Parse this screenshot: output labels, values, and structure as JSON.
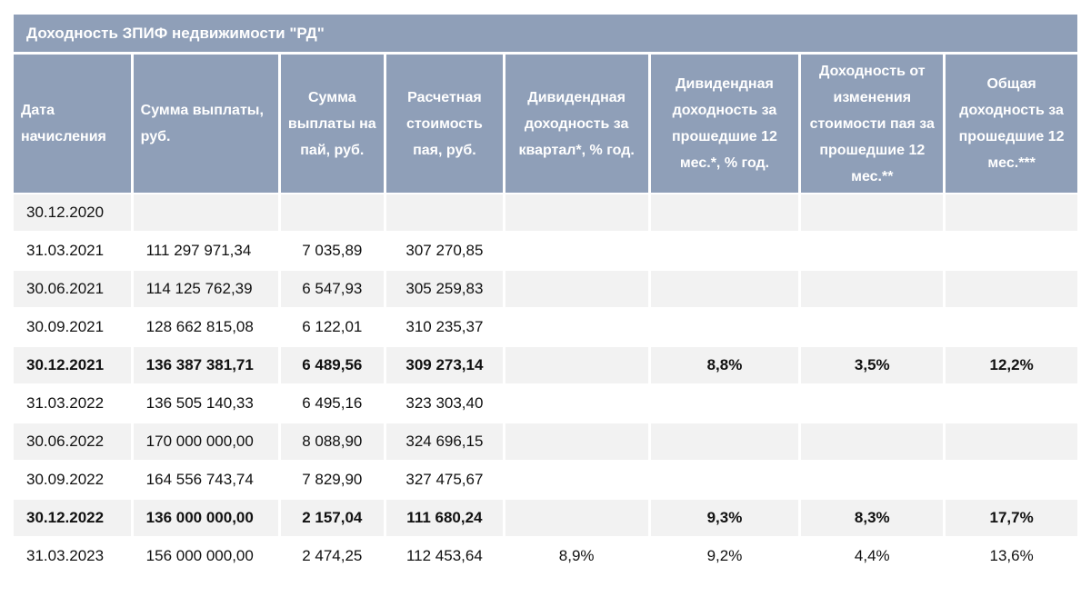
{
  "title": "Доходность ЗПИФ недвижимости \"РД\"",
  "headers": [
    "Дата начисления",
    "Сумма выплаты, руб.",
    "Сумма выплаты на пай, руб.",
    "Расчетная стоимость пая, руб.",
    "Дивидендная доходность за квартал*, % год.",
    "Дивидендная доходность за прошедшие 12 мес.*, % год.",
    "Доходность от изменения стоимости пая за прошедшие 12 мес.**",
    "Общая доходность за прошедшие 12 мес.***"
  ],
  "rows": [
    [
      "30.12.2020",
      "",
      "",
      "",
      "",
      "",
      "",
      ""
    ],
    [
      "31.03.2021",
      "111 297 971,34",
      "7 035,89",
      "307 270,85",
      "",
      "",
      "",
      ""
    ],
    [
      "30.06.2021",
      "114 125 762,39",
      "6 547,93",
      "305 259,83",
      "",
      "",
      "",
      ""
    ],
    [
      "30.09.2021",
      "128 662 815,08",
      "6 122,01",
      "310 235,37",
      "",
      "",
      "",
      ""
    ],
    [
      "30.12.2021",
      "136 387 381,71",
      "6 489,56",
      "309 273,14",
      "",
      "8,8%",
      "3,5%",
      "12,2%"
    ],
    [
      "31.03.2022",
      "136 505 140,33",
      "6 495,16",
      "323 303,40",
      "",
      "",
      "",
      ""
    ],
    [
      "30.06.2022",
      "170 000 000,00",
      "8 088,90",
      "324 696,15",
      "",
      "",
      "",
      ""
    ],
    [
      "30.09.2022",
      "164 556 743,74",
      "7 829,90",
      "327 475,67",
      "",
      "",
      "",
      ""
    ],
    [
      "30.12.2022",
      "136 000 000,00",
      "2 157,04",
      "111 680,24",
      "",
      "9,3%",
      "8,3%",
      "17,7%"
    ],
    [
      "31.03.2023",
      "156 000 000,00",
      "2 474,25",
      "112 453,64",
      "8,9%",
      "9,2%",
      "4,4%",
      "13,6%"
    ]
  ],
  "bold_rows": [
    4,
    8
  ]
}
